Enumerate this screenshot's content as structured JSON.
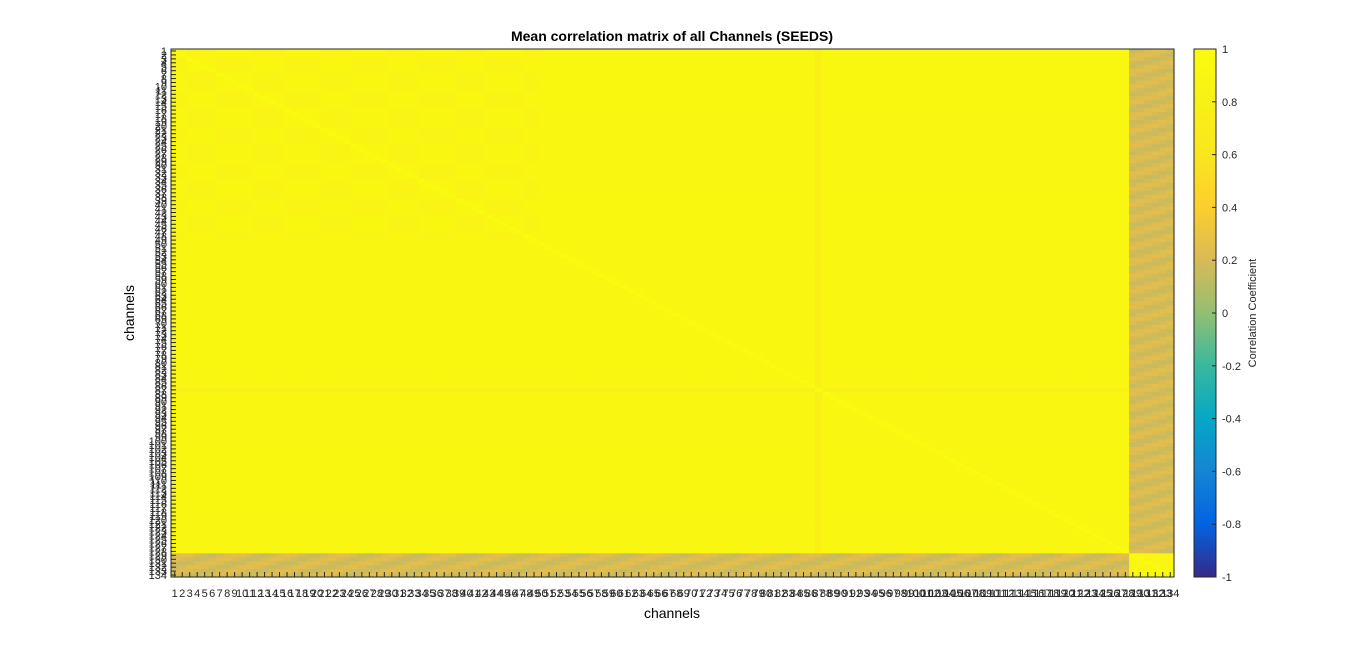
{
  "chart_data": {
    "type": "heatmap",
    "title": "Mean correlation matrix of all Channels (SEEDS)",
    "xlabel": "channels",
    "ylabel": "channels",
    "n_channels": 134,
    "x_ticks": [
      1,
      2,
      3,
      4,
      5,
      6,
      7,
      8,
      9,
      10,
      11,
      12,
      13,
      14,
      15,
      16,
      17,
      18,
      19,
      20,
      21,
      22,
      23,
      24,
      25,
      26,
      27,
      28,
      29,
      30,
      31,
      32,
      33,
      34,
      35,
      36,
      37,
      38,
      39,
      40,
      41,
      42,
      43,
      44,
      45,
      46,
      47,
      48,
      49,
      50,
      51,
      52,
      53,
      54,
      55,
      56,
      57,
      58,
      59,
      60,
      61,
      62,
      63,
      64,
      65,
      66,
      67,
      68,
      69,
      70,
      71,
      72,
      73,
      74,
      75,
      76,
      77,
      78,
      79,
      80,
      81,
      82,
      83,
      84,
      85,
      86,
      87,
      88,
      89,
      90,
      91,
      92,
      93,
      94,
      95,
      96,
      97,
      98,
      99,
      100,
      101,
      102,
      103,
      104,
      105,
      106,
      107,
      108,
      109,
      110,
      111,
      112,
      113,
      114,
      115,
      116,
      117,
      118,
      119,
      120,
      121,
      122,
      123,
      124,
      125,
      126,
      127,
      128,
      129,
      130,
      131,
      132,
      133,
      134
    ],
    "y_ticks": [
      1,
      2,
      3,
      4,
      5,
      6,
      7,
      8,
      9,
      10,
      11,
      12,
      13,
      14,
      15,
      16,
      17,
      18,
      19,
      20,
      21,
      22,
      23,
      24,
      25,
      26,
      27,
      28,
      29,
      30,
      31,
      32,
      33,
      34,
      35,
      36,
      37,
      38,
      39,
      40,
      41,
      42,
      43,
      44,
      45,
      46,
      47,
      48,
      49,
      50,
      51,
      52,
      53,
      54,
      55,
      56,
      57,
      58,
      59,
      60,
      61,
      62,
      63,
      64,
      65,
      66,
      67,
      68,
      69,
      70,
      71,
      72,
      73,
      74,
      75,
      76,
      77,
      78,
      79,
      80,
      81,
      82,
      83,
      84,
      85,
      86,
      87,
      88,
      89,
      90,
      91,
      92,
      93,
      94,
      95,
      96,
      97,
      98,
      99,
      100,
      101,
      102,
      103,
      104,
      105,
      106,
      107,
      108,
      109,
      110,
      111,
      112,
      113,
      114,
      115,
      116,
      117,
      118,
      119,
      120,
      121,
      122,
      123,
      124,
      125,
      126,
      127,
      128,
      129,
      130,
      131,
      132,
      133,
      134
    ],
    "colorbar": {
      "label": "Correlation Coefficient",
      "clim": [
        -1,
        1
      ],
      "ticks": [
        "-1",
        "-0.8",
        "-0.6",
        "-0.4",
        "-0.2",
        "0",
        "0.2",
        "0.4",
        "0.6",
        "0.8",
        "1"
      ],
      "colormap": "parula"
    },
    "structure": {
      "low_correlation_channels": [
        129,
        130,
        131,
        132,
        133,
        134
      ],
      "low_correlation_block_value": 0.2,
      "self_block_value": 0.9,
      "highlight_line_channel": 87,
      "highlight_line_value": 0.8,
      "typical_value": 0.92
    }
  }
}
